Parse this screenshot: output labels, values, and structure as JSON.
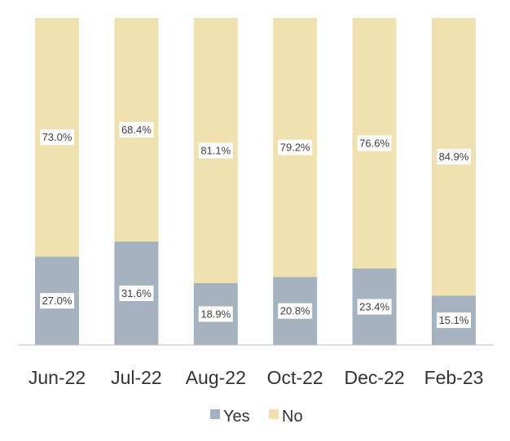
{
  "chart_data": {
    "type": "bar",
    "stacked": true,
    "percent": true,
    "categories": [
      "Jun-22",
      "Jul-22",
      "Aug-22",
      "Oct-22",
      "Dec-22",
      "Feb-23"
    ],
    "series": [
      {
        "name": "Yes",
        "color": "#a5b3c1",
        "values": [
          27.0,
          31.6,
          18.9,
          20.8,
          23.4,
          15.1
        ],
        "labels": [
          "27.0%",
          "31.6%",
          "18.9%",
          "20.8%",
          "23.4%",
          "15.1%"
        ]
      },
      {
        "name": "No",
        "color": "#f0e2b0",
        "values": [
          73.0,
          68.4,
          81.1,
          79.2,
          76.6,
          84.9
        ],
        "labels": [
          "73.0%",
          "68.4%",
          "81.1%",
          "79.2%",
          "76.6%",
          "84.9%"
        ]
      }
    ],
    "ylim": [
      0,
      100
    ],
    "grid": false,
    "legend": "bottom"
  }
}
